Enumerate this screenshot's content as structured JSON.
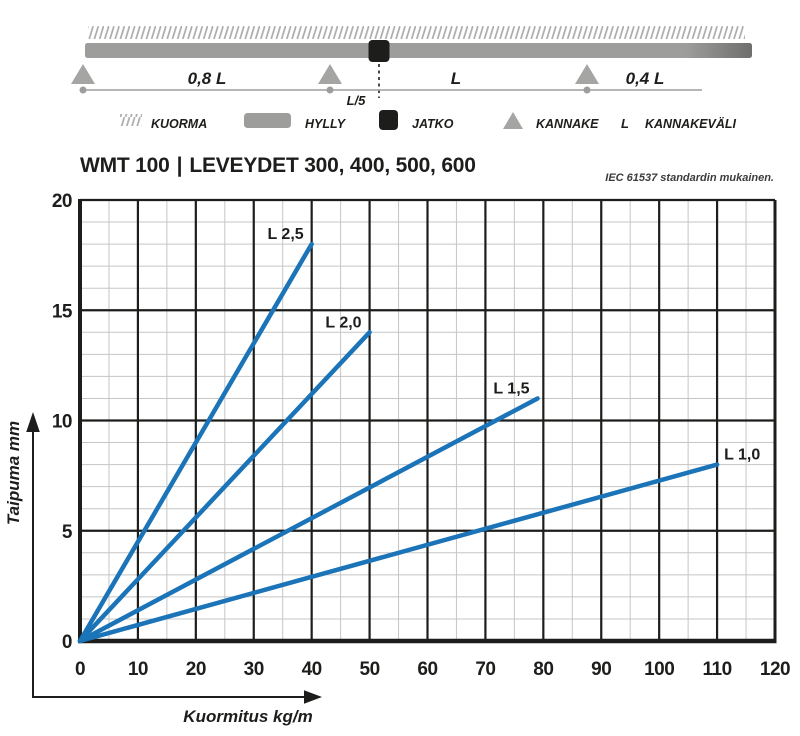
{
  "schematic": {
    "span_labels": [
      "0,8 L",
      "L",
      "0,4 L"
    ],
    "joint_offset_label": "L/5"
  },
  "legend": {
    "items": [
      {
        "icon": "load-hatch-icon",
        "label": "KUORMA"
      },
      {
        "icon": "shelf-bar-icon",
        "label": "HYLLY"
      },
      {
        "icon": "joint-square-icon",
        "label": "JATKO"
      },
      {
        "icon": "bracket-triangle-icon",
        "label": "KANNAKE"
      },
      {
        "icon": "span-length-symbol",
        "symbol": "L",
        "label": "KANNAKEVÄLI"
      }
    ]
  },
  "header": {
    "product": "WMT 100",
    "separator": "|",
    "widths": "LEVEYDET 300, 400, 500, 600",
    "standard_note": "IEC 61537 standardin mukainen."
  },
  "chart_data": {
    "type": "line",
    "title": "",
    "xlabel": "Kuormitus kg/m",
    "ylabel": "Taipuma mm",
    "xlim": [
      0,
      120
    ],
    "ylim": [
      0,
      20
    ],
    "x_major_ticks": [
      0,
      10,
      20,
      30,
      40,
      50,
      60,
      70,
      80,
      90,
      100,
      110,
      120
    ],
    "y_major_ticks": [
      0,
      5,
      10,
      15,
      20
    ],
    "x_minor_step": 5,
    "y_minor_step": 1,
    "grid": "major-dark + minor-light, boxed plot area",
    "legend_position": "inline-end-of-line-labels",
    "line_color": "#1b74b8",
    "grid_major_color": "#1d1d1b",
    "grid_minor_color": "#c5c5c5",
    "series": [
      {
        "name": "L 2,5",
        "x": [
          0,
          40
        ],
        "y": [
          0,
          18
        ],
        "label_anchor": "end"
      },
      {
        "name": "L 2,0",
        "x": [
          0,
          50
        ],
        "y": [
          0,
          14
        ],
        "label_anchor": "end"
      },
      {
        "name": "L 1,5",
        "x": [
          0,
          79
        ],
        "y": [
          0,
          11
        ],
        "label_anchor": "end"
      },
      {
        "name": "L 1,0",
        "x": [
          0,
          110
        ],
        "y": [
          0,
          8
        ],
        "label_anchor": "start"
      }
    ]
  }
}
